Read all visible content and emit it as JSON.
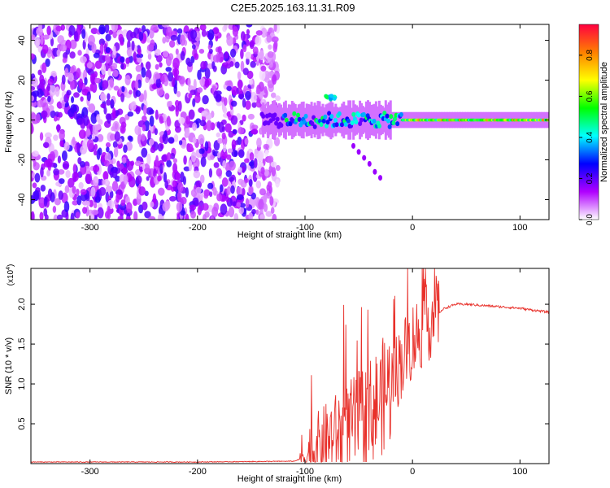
{
  "title": "C2E5.2025.163.11.31.R09",
  "chart_data": [
    {
      "type": "heatmap",
      "name": "spectrogram",
      "xlabel": "Height of straight line (km)",
      "ylabel": "Frequency (Hz)",
      "xlim": [
        -355,
        127
      ],
      "ylim": [
        -50,
        48
      ],
      "xticks": [
        -300,
        -200,
        -100,
        0,
        100
      ],
      "yticks": [
        -40,
        -20,
        0,
        20,
        40
      ],
      "noise_region": {
        "x_range": [
          -355,
          -125
        ],
        "freq_range": [
          -50,
          48
        ],
        "amplitude": 0.15
      },
      "signal_band": {
        "x_range": [
          -140,
          127
        ],
        "center_freq": 0
      },
      "descending_track": [
        {
          "x": -55,
          "freq": -13
        },
        {
          "x": -50,
          "freq": -16
        },
        {
          "x": -45,
          "freq": -19
        },
        {
          "x": -40,
          "freq": -22
        },
        {
          "x": -35,
          "freq": -26
        },
        {
          "x": -30,
          "freq": -29
        }
      ],
      "colorbar": {
        "label": "Normalized spectral amplitude",
        "range": [
          0.0,
          0.95
        ],
        "ticks": [
          "0.0",
          "0.2",
          "0.4",
          "0.6",
          "0.8"
        ],
        "colors": [
          "#ffffff",
          "#b000ff",
          "#0000ff",
          "#00ffff",
          "#00ff00",
          "#ffff00",
          "#ff8000",
          "#ff0040"
        ]
      }
    },
    {
      "type": "line",
      "name": "snr",
      "xlabel": "Height of straight line (km)",
      "ylabel": "SNR (10 * v/v)",
      "scale_label": "(x10",
      "scale_exponent": "4",
      "scale_close": ")",
      "xlim": [
        -355,
        127
      ],
      "ylim": [
        0,
        2.45
      ],
      "xticks": [
        -300,
        -200,
        -100,
        0,
        100
      ],
      "yticks": [
        "0.5",
        "1.0",
        "1.5",
        "2.0"
      ],
      "color": "#e8302a",
      "series": [
        {
          "name": "SNR",
          "x": [
            -355,
            -300,
            -200,
            -110,
            -100,
            -90,
            -80,
            -70,
            -60,
            -50,
            -40,
            -30,
            -20,
            -10,
            0,
            10,
            20,
            30,
            40,
            50,
            60,
            70,
            80,
            90,
            100,
            110,
            127
          ],
          "y": [
            0.02,
            0.02,
            0.02,
            0.03,
            0.08,
            0.2,
            0.3,
            0.38,
            0.45,
            0.55,
            0.65,
            0.8,
            1.0,
            1.3,
            1.55,
            1.7,
            1.85,
            1.95,
            2.0,
            2.0,
            1.99,
            1.98,
            1.97,
            1.96,
            1.95,
            1.93,
            1.9
          ]
        }
      ]
    }
  ]
}
